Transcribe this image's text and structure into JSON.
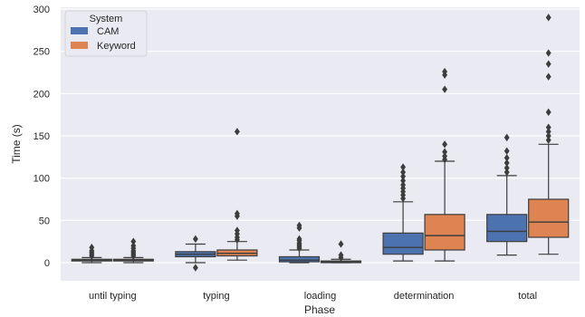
{
  "chart_data": {
    "type": "box",
    "xlabel": "Phase",
    "ylabel": "Time (s)",
    "ylim": [
      -20,
      300
    ],
    "yticks": [
      0,
      50,
      100,
      150,
      200,
      250,
      300
    ],
    "grid": true,
    "categories": [
      "until typing",
      "typing",
      "loading",
      "determination",
      "total"
    ],
    "legend": {
      "title": "System",
      "placement": "top-left"
    },
    "series": [
      {
        "name": "CAM",
        "color": "#4C72B0",
        "boxes": [
          {
            "whislo": 0,
            "q1": 2,
            "med": 3,
            "q3": 4,
            "whishi": 6,
            "fliers": [
              8,
              10,
              12,
              14,
              18
            ]
          },
          {
            "whislo": 0,
            "q1": 7,
            "med": 10,
            "q3": 13,
            "whishi": 22,
            "fliers": [
              -6,
              28
            ]
          },
          {
            "whislo": 0,
            "q1": 1,
            "med": 3,
            "q3": 7,
            "whishi": 15,
            "fliers": [
              17,
              19,
              21,
              23,
              26,
              28,
              41,
              44
            ]
          },
          {
            "whislo": 2,
            "q1": 10,
            "med": 18,
            "q3": 35,
            "whishi": 72,
            "fliers": [
              76,
              80,
              84,
              88,
              92,
              97,
              102,
              107,
              113
            ]
          },
          {
            "whislo": 9,
            "q1": 25,
            "med": 37,
            "q3": 57,
            "whishi": 103,
            "fliers": [
              107,
              112,
              118,
              124,
              132,
              148
            ]
          }
        ]
      },
      {
        "name": "Keyword",
        "color": "#DD8452",
        "boxes": [
          {
            "whislo": 0,
            "q1": 2,
            "med": 3,
            "q3": 4,
            "whishi": 6,
            "fliers": [
              8,
              10,
              12,
              14,
              17,
              20,
              25
            ]
          },
          {
            "whislo": 3,
            "q1": 8,
            "med": 11,
            "q3": 15,
            "whishi": 25,
            "fliers": [
              27,
              30,
              34,
              38,
              55,
              58,
              155
            ]
          },
          {
            "whislo": 0,
            "q1": 0,
            "med": 1,
            "q3": 2,
            "whishi": 4,
            "fliers": [
              6,
              9,
              22
            ]
          },
          {
            "whislo": 2,
            "q1": 15,
            "med": 32,
            "q3": 57,
            "whishi": 120,
            "fliers": [
              122,
              126,
              131,
              140,
              205,
              222,
              226
            ]
          },
          {
            "whislo": 10,
            "q1": 30,
            "med": 48,
            "q3": 75,
            "whishi": 140,
            "fliers": [
              145,
              150,
              155,
              160,
              178,
              220,
              235,
              248,
              290
            ]
          }
        ]
      }
    ]
  }
}
